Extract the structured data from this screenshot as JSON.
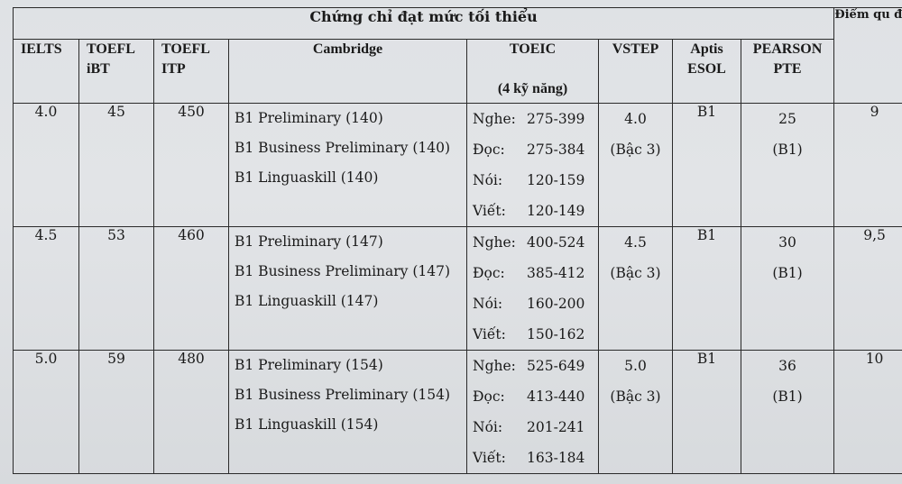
{
  "table": {
    "title": "Chứng chỉ đạt mức tối thiểu",
    "side_header": "Điểm qu đổi",
    "headers": {
      "ielts": "IELTS",
      "toefl_ibt_1": "TOEFL",
      "toefl_ibt_2": "iBT",
      "toefl_itp_1": "TOEFL",
      "toefl_itp_2": "ITP",
      "cambridge": "Cambridge",
      "toeic_1": "TOEIC",
      "toeic_2": "(4 kỹ năng)",
      "vstep": "VSTEP",
      "aptis_1": "Aptis",
      "aptis_2": "ESOL",
      "pearson_1": "PEARSON",
      "pearson_2": "PTE"
    },
    "rows": [
      {
        "ielts": "4.0",
        "toefl_ibt": "45",
        "toefl_itp": "450",
        "cambridge": [
          "B1 Preliminary (140)",
          "B1 Business Preliminary (140)",
          "B1 Linguaskill (140)"
        ],
        "toeic": [
          {
            "label": "Nghe:",
            "value": "275-399"
          },
          {
            "label": "Đọc:",
            "value": "275-384"
          },
          {
            "label": "Nói:",
            "value": "120-159"
          },
          {
            "label": "Viết:",
            "value": "120-149"
          }
        ],
        "vstep": "4.0",
        "vstep_level": "(Bậc 3)",
        "aptis": "B1",
        "pte": "25",
        "pte_level": "(B1)",
        "score": "9"
      },
      {
        "ielts": "4.5",
        "toefl_ibt": "53",
        "toefl_itp": "460",
        "cambridge": [
          "B1 Preliminary (147)",
          "B1 Business Preliminary (147)",
          "B1 Linguaskill (147)"
        ],
        "toeic": [
          {
            "label": "Nghe:",
            "value": "400-524"
          },
          {
            "label": "Đọc:",
            "value": "385-412"
          },
          {
            "label": "Nói:",
            "value": "160-200"
          },
          {
            "label": "Viết:",
            "value": "150-162"
          }
        ],
        "vstep": "4.5",
        "vstep_level": "(Bậc 3)",
        "aptis": "B1",
        "pte": "30",
        "pte_level": "(B1)",
        "score": "9,5"
      },
      {
        "ielts": "5.0",
        "toefl_ibt": "59",
        "toefl_itp": "480",
        "cambridge": [
          "B1 Preliminary (154)",
          "B1 Business Preliminary (154)",
          "B1 Linguaskill (154)"
        ],
        "toeic": [
          {
            "label": "Nghe:",
            "value": "525-649"
          },
          {
            "label": "Đọc:",
            "value": "413-440"
          },
          {
            "label": "Nói:",
            "value": "201-241"
          },
          {
            "label": "Viết:",
            "value": "163-184"
          }
        ],
        "vstep": "5.0",
        "vstep_level": "(Bậc 3)",
        "aptis": "B1",
        "pte": "36",
        "pte_level": "(B1)",
        "score": "10"
      }
    ]
  }
}
